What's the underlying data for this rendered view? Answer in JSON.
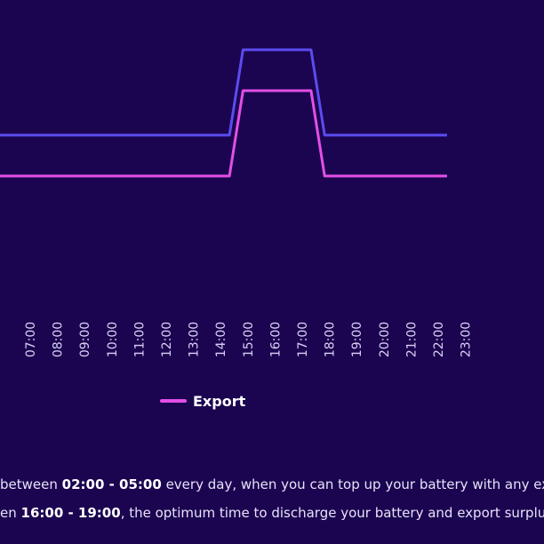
{
  "chart_data": {
    "type": "line",
    "x": [
      "07:00",
      "08:00",
      "09:00",
      "10:00",
      "11:00",
      "12:00",
      "13:00",
      "14:00",
      "15:00",
      "16:00",
      "17:00",
      "18:00",
      "19:00",
      "20:00",
      "21:00",
      "22:00",
      "23:00"
    ],
    "series": [
      {
        "name": "",
        "color": "#5b4cf0",
        "points": [
          {
            "x": "07:00",
            "y": 2
          },
          {
            "x": "15:30",
            "y": 2
          },
          {
            "x": "16:00",
            "y": 3
          },
          {
            "x": "18:30",
            "y": 3
          },
          {
            "x": "19:00",
            "y": 2
          },
          {
            "x": "23:30",
            "y": 2
          }
        ]
      },
      {
        "name": "Export",
        "color": "#e34fe6",
        "points": [
          {
            "x": "07:00",
            "y": 1
          },
          {
            "x": "15:30",
            "y": 1
          },
          {
            "x": "16:00",
            "y": 2
          },
          {
            "x": "18:30",
            "y": 2
          },
          {
            "x": "19:00",
            "y": 1
          },
          {
            "x": "23:30",
            "y": 1
          }
        ]
      }
    ],
    "legend": [
      "Export"
    ],
    "legend_placement": "bottom",
    "grid": false
  },
  "notes": [
    {
      "before": "between ",
      "bold": "02:00 - 05:00",
      "after": " every day, when you can top up your battery with any ext"
    },
    {
      "before": "en ",
      "bold": "16:00 - 19:00",
      "after": ", the optimum time to discharge your battery and export surplus e"
    }
  ],
  "colors": {
    "background": "#1b0550",
    "import_line": "#5b4cf0",
    "export_line": "#e34fe6"
  }
}
